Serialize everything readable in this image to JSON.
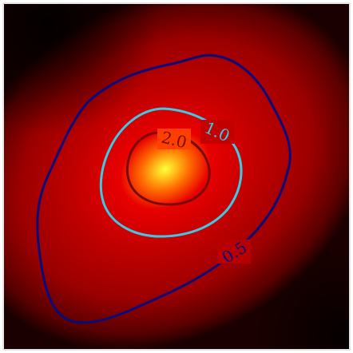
{
  "chart_data": {
    "type": "heatmap",
    "title": "",
    "xlabel": "",
    "ylabel": "",
    "colormap": "hot",
    "colors": {
      "background_dark": "#1a0000",
      "background_mid": "#c00000",
      "peak": "#ffff40",
      "level_0_5": "#0a0a7a",
      "level_1_0": "#3ec8e6",
      "level_2_0": "#7a0a0a"
    },
    "contours": [
      {
        "level": 0.5,
        "label": "0.5"
      },
      {
        "level": 1.0,
        "label": "1.0"
      },
      {
        "level": 2.0,
        "label": "2.0"
      }
    ]
  }
}
